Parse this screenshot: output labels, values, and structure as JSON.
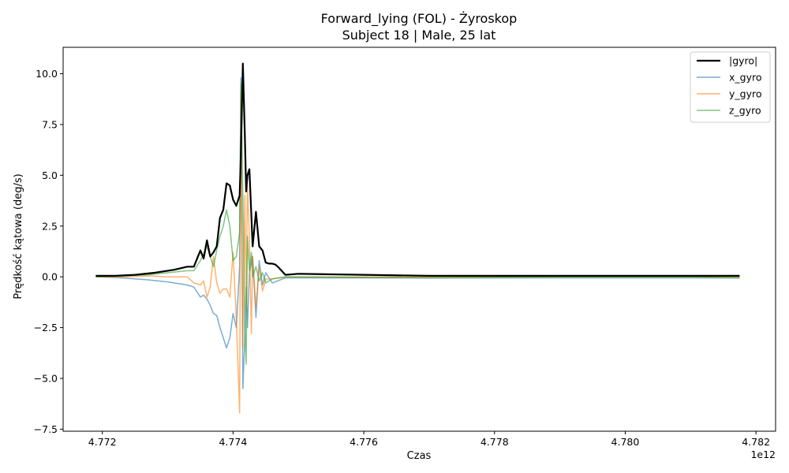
{
  "chart_data": {
    "type": "line",
    "title": "Forward_lying (FOL) - Żyroskop",
    "subtitle": "Subject 18 | Male, 25 lat",
    "xlabel": "Czas",
    "ylabel": "Prędkość kątowa (deg/s)",
    "x_offset_label": "1e12",
    "xlim": [
      4.7714,
      4.7823
    ],
    "ylim": [
      -7.6,
      11.3
    ],
    "x_ticks": [
      4.772,
      4.774,
      4.776,
      4.778,
      4.78,
      4.782
    ],
    "x_tick_labels": [
      "4.772",
      "4.774",
      "4.776",
      "4.778",
      "4.780",
      "4.782"
    ],
    "y_ticks": [
      -7.5,
      -5.0,
      -2.5,
      0.0,
      2.5,
      5.0,
      7.5,
      10.0
    ],
    "y_tick_labels": [
      "−7.5",
      "−5.0",
      "−2.5",
      "0.0",
      "2.5",
      "5.0",
      "7.5",
      "10.0"
    ],
    "grid": false,
    "legend_position": "top-right",
    "series": [
      {
        "name": "|gyro|",
        "color": "#000000",
        "x": [
          4.7719,
          4.7722,
          4.7725,
          4.7728,
          4.7731,
          4.7733,
          4.7734,
          4.7735,
          4.77355,
          4.7736,
          4.77365,
          4.7737,
          4.77375,
          4.7738,
          4.77385,
          4.7739,
          4.77395,
          4.774,
          4.77405,
          4.7741,
          4.77412,
          4.77415,
          4.77418,
          4.7742,
          4.77422,
          4.77425,
          4.77428,
          4.7743,
          4.77435,
          4.7744,
          4.77445,
          4.7745,
          4.77455,
          4.7746,
          4.77465,
          4.7747,
          4.7748,
          4.775,
          4.776,
          4.777,
          4.778,
          4.779,
          4.78,
          4.781,
          4.78175
        ],
        "y": [
          0.05,
          0.05,
          0.1,
          0.2,
          0.35,
          0.5,
          0.5,
          1.3,
          0.9,
          1.8,
          1.0,
          1.2,
          1.5,
          2.9,
          3.3,
          4.6,
          4.5,
          3.8,
          3.5,
          4.0,
          6.0,
          10.5,
          7.0,
          4.2,
          5.0,
          5.3,
          3.0,
          1.5,
          3.2,
          1.5,
          1.3,
          0.7,
          0.65,
          0.65,
          0.6,
          0.45,
          0.1,
          0.15,
          0.1,
          0.05,
          0.05,
          0.05,
          0.05,
          0.05,
          0.05
        ]
      },
      {
        "name": "x_gyro",
        "color": "#1f77b4",
        "x": [
          4.7719,
          4.7723,
          4.7727,
          4.773,
          4.7733,
          4.7734,
          4.7735,
          4.77355,
          4.7736,
          4.77365,
          4.7737,
          4.77375,
          4.7738,
          4.77385,
          4.7739,
          4.77395,
          4.774,
          4.77405,
          4.7741,
          4.77412,
          4.77415,
          4.77418,
          4.7742,
          4.77422,
          4.77425,
          4.7743,
          4.77435,
          4.7744,
          4.77445,
          4.7745,
          4.7746,
          4.7748,
          4.775,
          4.777,
          4.779,
          4.781,
          4.78175
        ],
        "y": [
          0.0,
          -0.05,
          -0.15,
          -0.25,
          -0.4,
          -0.5,
          -1.0,
          -0.9,
          -1.1,
          -1.4,
          -1.8,
          -1.9,
          -2.5,
          -3.0,
          -3.5,
          -3.0,
          -1.8,
          -2.5,
          0.5,
          9.8,
          -5.5,
          -3.0,
          -0.5,
          -2.5,
          0.2,
          1.0,
          -2.0,
          0.8,
          -0.4,
          0.2,
          -0.3,
          -0.05,
          -0.05,
          -0.05,
          -0.05,
          -0.05,
          -0.05
        ]
      },
      {
        "name": "y_gyro",
        "color": "#ff7f0e",
        "x": [
          4.7719,
          4.7723,
          4.7727,
          4.773,
          4.7733,
          4.7734,
          4.7735,
          4.77355,
          4.7736,
          4.77365,
          4.7737,
          4.77375,
          4.7738,
          4.77385,
          4.7739,
          4.77395,
          4.774,
          4.77405,
          4.7741,
          4.77412,
          4.77415,
          4.77418,
          4.7742,
          4.77422,
          4.77425,
          4.77428,
          4.7743,
          4.77435,
          4.7744,
          4.77445,
          4.7745,
          4.7746,
          4.7748,
          4.775,
          4.777,
          4.779,
          4.781,
          4.78175
        ],
        "y": [
          0.0,
          0.0,
          0.05,
          0.0,
          0.0,
          -0.3,
          -0.4,
          -0.2,
          -1.0,
          -0.5,
          1.0,
          -0.3,
          -0.8,
          -0.6,
          -0.6,
          -1.0,
          1.2,
          -2.0,
          -6.7,
          9.0,
          -3.5,
          4.0,
          -1.5,
          4.5,
          2.0,
          -2.8,
          1.0,
          -1.5,
          0.5,
          -0.7,
          -0.1,
          -0.1,
          0.0,
          0.0,
          0.0,
          0.0,
          0.0,
          0.0
        ]
      },
      {
        "name": "z_gyro",
        "color": "#2ca02c",
        "x": [
          4.7719,
          4.7723,
          4.7727,
          4.773,
          4.7733,
          4.7734,
          4.7735,
          4.7736,
          4.7737,
          4.77375,
          4.7738,
          4.77385,
          4.7739,
          4.77395,
          4.774,
          4.77405,
          4.7741,
          4.77412,
          4.77415,
          4.77418,
          4.7742,
          4.77422,
          4.77425,
          4.77428,
          4.7743,
          4.77435,
          4.7744,
          4.77445,
          4.7745,
          4.7746,
          4.7748,
          4.775,
          4.777,
          4.779,
          4.781,
          4.78175
        ],
        "y": [
          0.0,
          0.05,
          0.1,
          0.2,
          0.3,
          0.3,
          0.8,
          1.5,
          0.5,
          1.3,
          2.0,
          2.5,
          3.3,
          2.5,
          0.8,
          1.0,
          2.2,
          9.5,
          4.0,
          -2.5,
          -4.3,
          2.0,
          0.3,
          1.2,
          0.0,
          0.5,
          -0.2,
          0.2,
          -0.3,
          -0.1,
          0.0,
          0.0,
          -0.05,
          0.0,
          0.0,
          -0.05
        ]
      }
    ]
  }
}
